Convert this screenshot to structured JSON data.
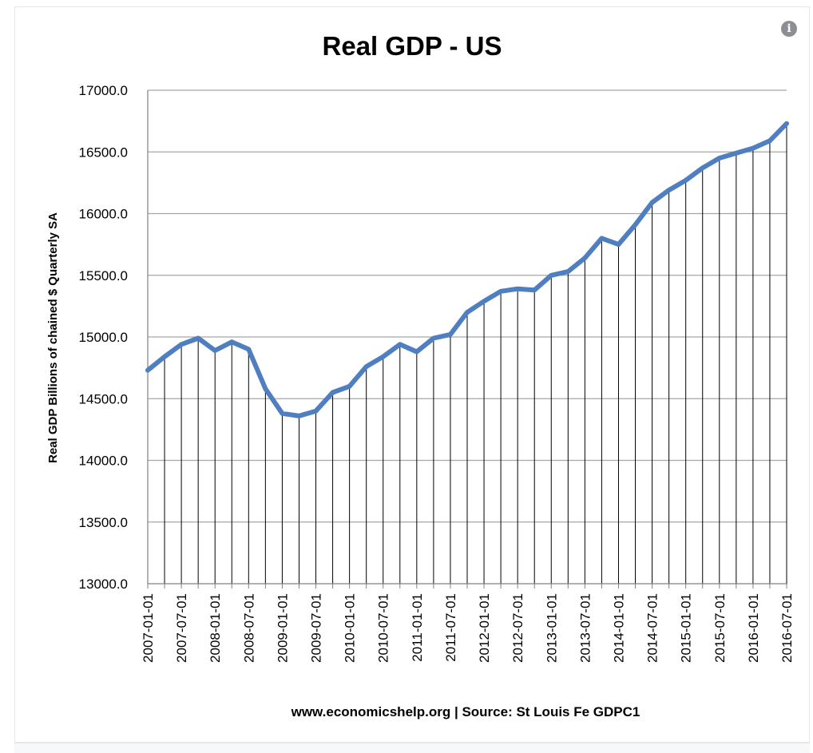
{
  "icons": {
    "info": "info-icon"
  },
  "colors": {
    "line": "#4f7fc0",
    "grid": "#a6a6a6",
    "drop": "#000000",
    "axis": "#808080"
  },
  "chart_data": {
    "type": "line",
    "title": "Real GDP - US",
    "ylabel": "Real GDP  Billions of chained $ Quarterly SA",
    "source": "www.economicshelp.org | Source: St Louis Fe GDPC1",
    "ylim": [
      13000,
      17000
    ],
    "yticks": [
      "13000.0",
      "13500.0",
      "14000.0",
      "14500.0",
      "15000.0",
      "15500.0",
      "16000.0",
      "16500.0",
      "17000.0"
    ],
    "grid": true,
    "drop_lines": true,
    "legend": "none",
    "xticklabels": [
      "2007-01-01",
      "2007-07-01",
      "2008-01-01",
      "2008-07-01",
      "2009-01-01",
      "2009-07-01",
      "2010-01-01",
      "2010-07-01",
      "2011-01-01",
      "2011-07-01",
      "2012-01-01",
      "2012-07-01",
      "2013-01-01",
      "2013-07-01",
      "2014-01-01",
      "2014-07-01",
      "2015-01-01",
      "2015-07-01",
      "2016-01-01",
      "2016-07-01"
    ],
    "x": [
      "2007-01-01",
      "2007-04-01",
      "2007-07-01",
      "2007-10-01",
      "2008-01-01",
      "2008-04-01",
      "2008-07-01",
      "2008-10-01",
      "2009-01-01",
      "2009-04-01",
      "2009-07-01",
      "2009-10-01",
      "2010-01-01",
      "2010-04-01",
      "2010-07-01",
      "2010-10-01",
      "2011-01-01",
      "2011-04-01",
      "2011-07-01",
      "2011-10-01",
      "2012-01-01",
      "2012-04-01",
      "2012-07-01",
      "2012-10-01",
      "2013-01-01",
      "2013-04-01",
      "2013-07-01",
      "2013-10-01",
      "2014-01-01",
      "2014-04-01",
      "2014-07-01",
      "2014-10-01",
      "2015-01-01",
      "2015-04-01",
      "2015-07-01",
      "2015-10-01",
      "2016-01-01",
      "2016-04-01",
      "2016-07-01"
    ],
    "series": [
      {
        "values": [
          14730,
          14840,
          14940,
          14990,
          14890,
          14960,
          14900,
          14580,
          14380,
          14360,
          14400,
          14550,
          14600,
          14760,
          14840,
          14940,
          14880,
          14990,
          15020,
          15200,
          15290,
          15370,
          15390,
          15380,
          15500,
          15530,
          15640,
          15800,
          15750,
          15910,
          16090,
          16190,
          16270,
          16370,
          16450,
          16490,
          16530,
          16590,
          16730
        ]
      }
    ]
  }
}
